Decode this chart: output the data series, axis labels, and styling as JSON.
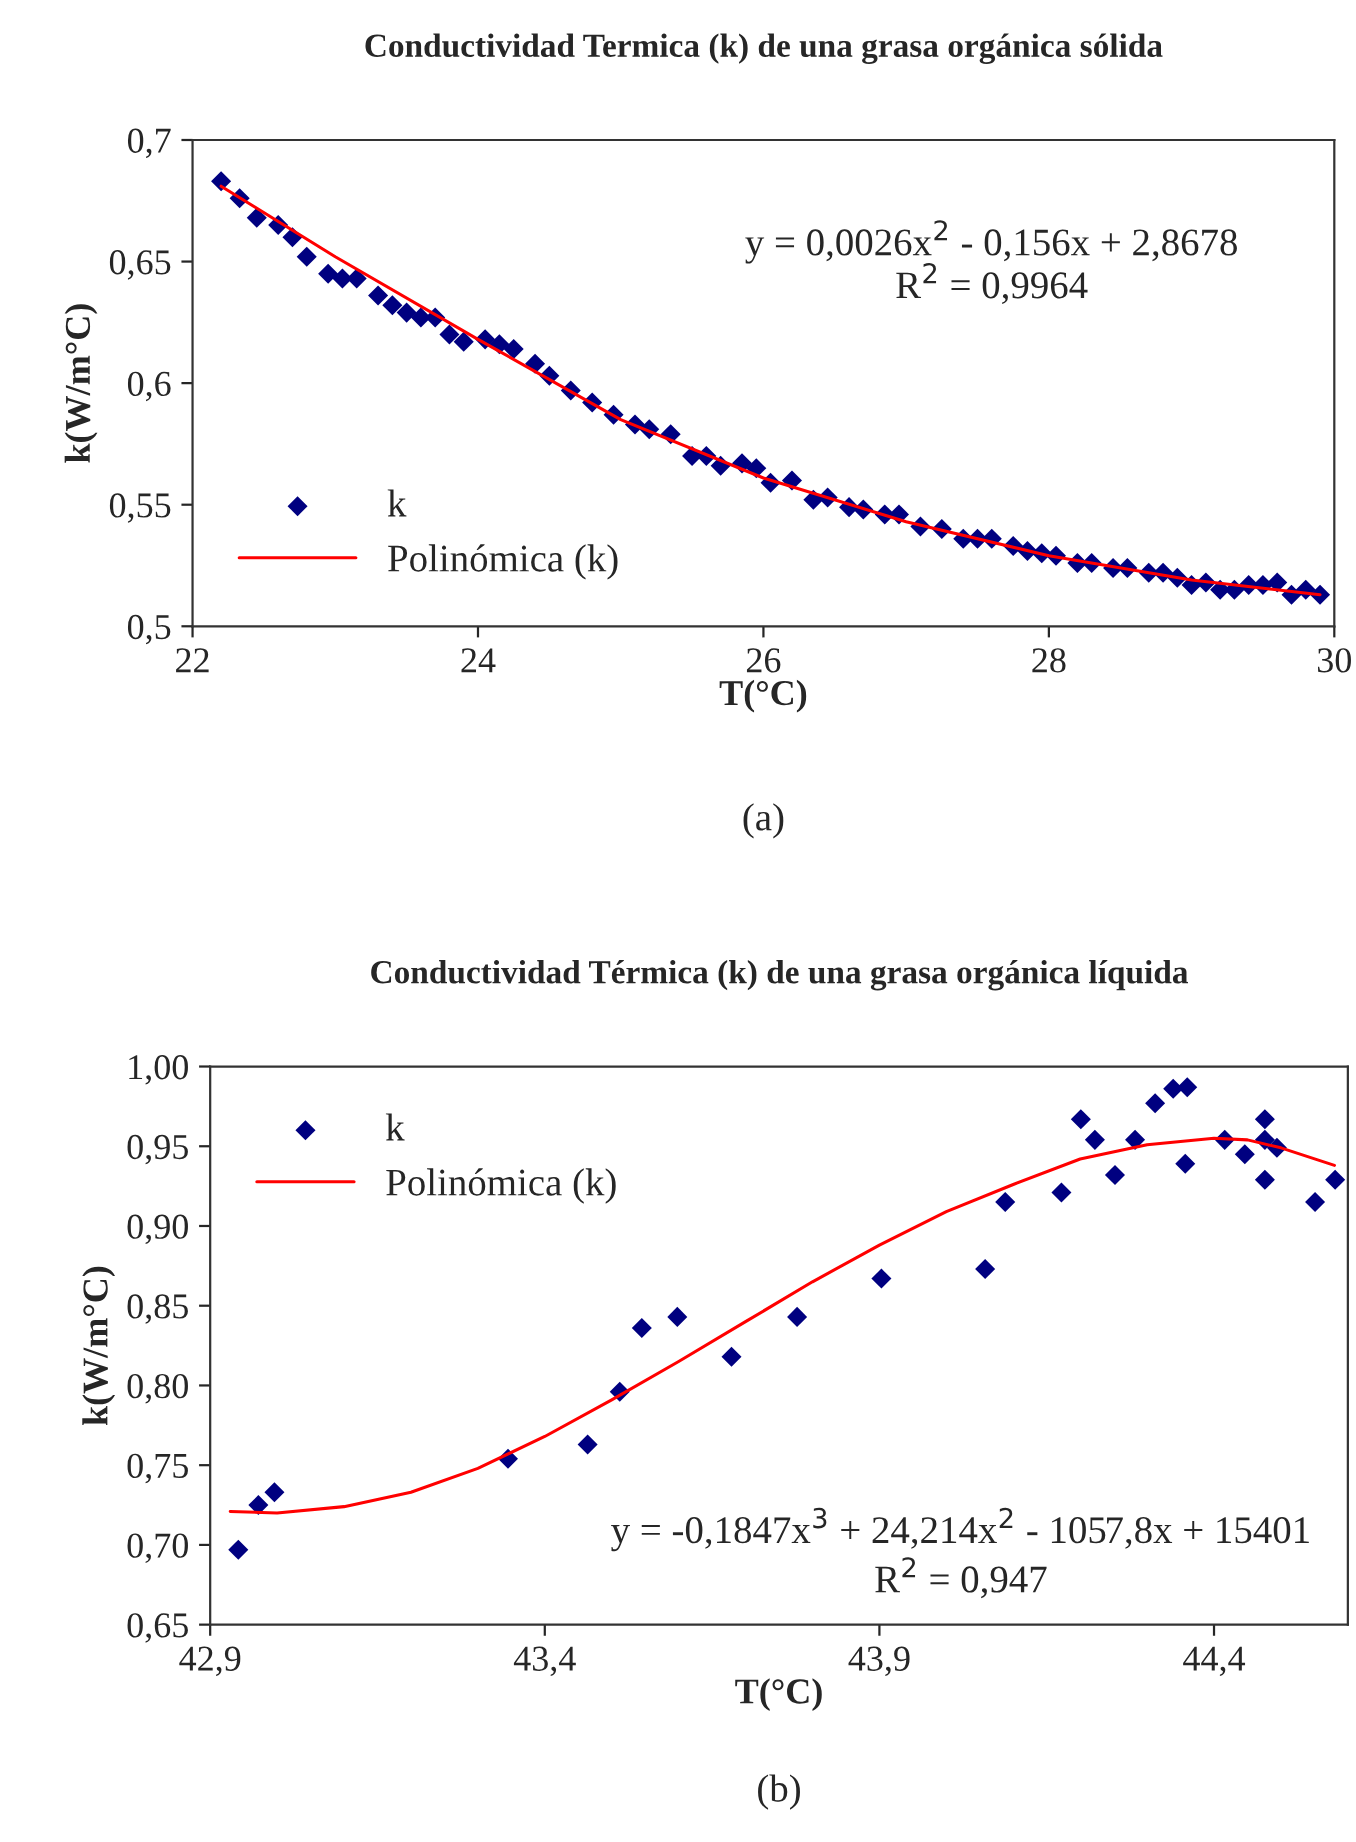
{
  "chart_data": [
    {
      "type": "scatter",
      "title": "Conductividad Termica (k) de una grasa orgánica sólida",
      "xlabel": "T(°C)",
      "ylabel": "k(W/m°C)",
      "xlim": [
        22,
        30
      ],
      "xticks": [
        22,
        24,
        26,
        28,
        30
      ],
      "ylim": [
        0.5,
        0.7
      ],
      "yticks": [
        {
          "value": 0.5,
          "label": "0,5"
        },
        {
          "value": 0.55,
          "label": "0,55"
        },
        {
          "value": 0.6,
          "label": "0,6"
        },
        {
          "value": 0.65,
          "label": "0,65"
        },
        {
          "value": 0.7,
          "label": "0,7"
        }
      ],
      "grid": false,
      "legend": "bottom left",
      "annotations": [
        "y = 0,0026x$^{2}$ - 0,156x + 2,8678",
        "R$^{2}$ = 0,9964",
        "(a)"
      ],
      "series": [
        {
          "name": "k",
          "marker": "diamond",
          "color": "#000080",
          "x": [
            22.2,
            22.33,
            22.45,
            22.6,
            22.7,
            22.8,
            22.95,
            23.05,
            23.15,
            23.3,
            23.4,
            23.5,
            23.6,
            23.7,
            23.8,
            23.9,
            24.05,
            24.15,
            24.25,
            24.4,
            24.5,
            24.65,
            24.8,
            24.95,
            25.1,
            25.2,
            25.35,
            25.5,
            25.6,
            25.7,
            25.85,
            25.95,
            26.05,
            26.2,
            26.35,
            26.45,
            26.6,
            26.7,
            26.85,
            26.95,
            27.1,
            27.25,
            27.4,
            27.5,
            27.6,
            27.75,
            27.85,
            27.95,
            28.05,
            28.2,
            28.3,
            28.45,
            28.55,
            28.7,
            28.8,
            28.9,
            29.0,
            29.1,
            29.2,
            29.3,
            29.4,
            29.5,
            29.6,
            29.7,
            29.8,
            29.9
          ],
          "values": [
            0.683,
            0.676,
            0.668,
            0.665,
            0.66,
            0.652,
            0.645,
            0.643,
            0.643,
            0.636,
            0.632,
            0.629,
            0.627,
            0.627,
            0.62,
            0.617,
            0.618,
            0.616,
            0.614,
            0.608,
            0.603,
            0.597,
            0.592,
            0.587,
            0.583,
            0.581,
            0.579,
            0.57,
            0.57,
            0.566,
            0.567,
            0.565,
            0.559,
            0.56,
            0.552,
            0.553,
            0.549,
            0.548,
            0.546,
            0.546,
            0.541,
            0.54,
            0.536,
            0.536,
            0.536,
            0.533,
            0.531,
            0.53,
            0.529,
            0.526,
            0.526,
            0.524,
            0.524,
            0.522,
            0.522,
            0.52,
            0.517,
            0.518,
            0.515,
            0.515,
            0.517,
            0.517,
            0.518,
            0.513,
            0.515,
            0.513
          ]
        },
        {
          "name": "Polinómica (k)",
          "type": "line",
          "line_style": "solid",
          "color": "#ff0000",
          "x": [
            22.2,
            23,
            24,
            25,
            26,
            27,
            28,
            29,
            29.9
          ],
          "values": [
            0.681,
            0.652,
            0.618,
            0.585,
            0.561,
            0.543,
            0.529,
            0.519,
            0.513
          ]
        }
      ]
    },
    {
      "type": "scatter",
      "title": "Conductividad Térmica (k) de una grasa orgánica líquida",
      "xlabel": "T(°C)",
      "ylabel": "k(W/m°C)",
      "xlim": [
        42.9,
        44.6
      ],
      "xticks": [
        {
          "value": 42.9,
          "label": "42,9"
        },
        {
          "value": 43.4,
          "label": "43,4"
        },
        {
          "value": 43.9,
          "label": "43,9"
        },
        {
          "value": 44.4,
          "label": "44,4"
        }
      ],
      "ylim": [
        0.65,
        1.0
      ],
      "yticks": [
        {
          "value": 0.65,
          "label": "0,65"
        },
        {
          "value": 0.7,
          "label": "0,70"
        },
        {
          "value": 0.75,
          "label": "0,75"
        },
        {
          "value": 0.8,
          "label": "0,80"
        },
        {
          "value": 0.85,
          "label": "0,85"
        },
        {
          "value": 0.9,
          "label": "0,90"
        },
        {
          "value": 0.95,
          "label": "0,95"
        },
        {
          "value": 1.0,
          "label": "1,00"
        }
      ],
      "grid": false,
      "legend": "top left",
      "annotations": [
        "y = -0,1847x$^{3}$ + 24,214x$^{2}$ - 1057,8x + 15401",
        "R$^{2}$ = 0,947",
        "(b)"
      ],
      "series": [
        {
          "name": "k",
          "marker": "diamond",
          "color": "#000080",
          "x": [
            42.942,
            42.972,
            42.996,
            43.345,
            43.464,
            43.512,
            43.545,
            43.598,
            43.679,
            43.777,
            43.903,
            44.058,
            44.088,
            44.172,
            44.201,
            44.222,
            44.252,
            44.282,
            44.312,
            44.339,
            44.36,
            44.357,
            44.416,
            44.446,
            44.476,
            44.476,
            44.476,
            44.494,
            44.551,
            44.581
          ],
          "values": [
            0.697,
            0.725,
            0.733,
            0.754,
            0.763,
            0.796,
            0.836,
            0.843,
            0.818,
            0.843,
            0.867,
            0.873,
            0.915,
            0.921,
            0.967,
            0.954,
            0.932,
            0.954,
            0.977,
            0.986,
            0.987,
            0.939,
            0.954,
            0.945,
            0.967,
            0.954,
            0.929,
            0.949,
            0.915,
            0.929
          ]
        },
        {
          "name": "Polinómica (k)",
          "type": "line",
          "line_style": "solid",
          "color": "#ff0000",
          "x": [
            42.93,
            43.0,
            43.1,
            43.2,
            43.3,
            43.4,
            43.5,
            43.6,
            43.7,
            43.8,
            43.9,
            44.0,
            44.1,
            44.2,
            44.3,
            44.4,
            44.45,
            44.5,
            44.58
          ],
          "values": [
            0.721,
            0.72,
            0.724,
            0.733,
            0.748,
            0.768,
            0.791,
            0.815,
            0.84,
            0.865,
            0.888,
            0.909,
            0.926,
            0.942,
            0.951,
            0.955,
            0.954,
            0.949,
            0.938
          ]
        }
      ]
    }
  ]
}
